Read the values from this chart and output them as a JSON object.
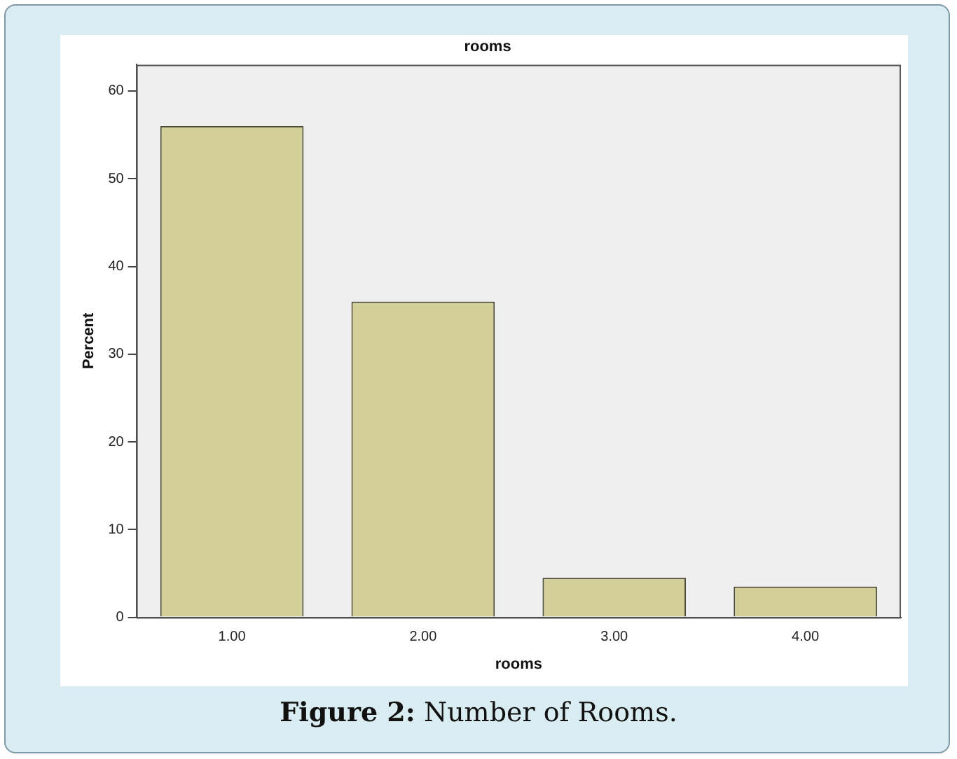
{
  "chart_data": {
    "type": "bar",
    "title": "rooms",
    "xlabel": "rooms",
    "ylabel": "Percent",
    "categories": [
      "1.00",
      "2.00",
      "3.00",
      "4.00"
    ],
    "values": [
      56,
      36,
      4.5,
      3.5
    ],
    "color": "#d3cf99",
    "ylim": [
      0,
      63
    ],
    "yticks": [
      0,
      10,
      20,
      30,
      40,
      50,
      60
    ],
    "grid": false,
    "annotations": [
      "Figure 2: Number of Rooms."
    ]
  }
}
